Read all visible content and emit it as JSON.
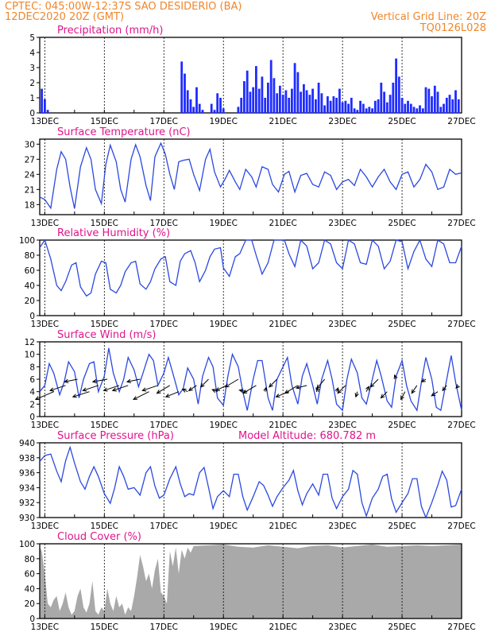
{
  "header": {
    "left_line1": "CPTEC:   045:00W-12:37S  SAO DESIDERIO (BA)",
    "left_line2": "12DEC2020 20Z (GMT)",
    "right_line1": "Vertical Grid Line: 20Z",
    "right_line2": "TQ0126L028"
  },
  "x_axis": {
    "start_day": 12.83,
    "end_day": 27,
    "tick_labels": [
      "13DEC",
      "15DEC",
      "17DEC",
      "19DEC",
      "21DEC",
      "23DEC",
      "25DEC",
      "27DEC"
    ],
    "tick_days": [
      13,
      15,
      17,
      19,
      21,
      23,
      25,
      27
    ],
    "minor_tick_days": [
      14,
      16,
      18,
      20,
      22,
      24,
      26
    ]
  },
  "colors": {
    "header": "#f0862a",
    "panel_title": "#e0148c",
    "line": "#2b48e0",
    "precip_bar": "#1f2cff",
    "cloud_fill": "#a9a9a9",
    "wind_arrow": "#000000"
  },
  "chart_data": [
    {
      "type": "bar",
      "title": "Precipitation (mm/h)",
      "ylim": [
        0,
        5
      ],
      "y_ticks": [
        0,
        1,
        2,
        3,
        4,
        5
      ],
      "x_day": [
        12.9,
        13.0,
        13.1,
        17.6,
        17.7,
        17.8,
        17.9,
        18.0,
        18.1,
        18.2,
        18.3,
        18.6,
        18.7,
        18.8,
        18.9,
        19.0,
        19.5,
        19.6,
        19.7,
        19.8,
        19.9,
        20.0,
        20.1,
        20.2,
        20.3,
        20.4,
        20.5,
        20.6,
        20.7,
        20.8,
        20.9,
        21.0,
        21.1,
        21.2,
        21.3,
        21.4,
        21.5,
        21.6,
        21.7,
        21.8,
        21.9,
        22.0,
        22.1,
        22.2,
        22.3,
        22.4,
        22.5,
        22.6,
        22.7,
        22.8,
        22.9,
        23.0,
        23.1,
        23.2,
        23.3,
        23.4,
        23.5,
        23.6,
        23.7,
        23.8,
        23.9,
        24.0,
        24.1,
        24.2,
        24.3,
        24.4,
        24.5,
        24.6,
        24.7,
        24.8,
        24.9,
        25.0,
        25.1,
        25.2,
        25.3,
        25.4,
        25.5,
        25.6,
        25.7,
        25.8,
        25.9,
        26.0,
        26.1,
        26.2,
        26.3,
        26.4,
        26.5,
        26.6,
        26.7,
        26.8,
        26.9
      ],
      "values": [
        1.6,
        0.9,
        0.2,
        3.4,
        2.6,
        1.5,
        0.9,
        0.4,
        1.7,
        0.6,
        0.2,
        0.6,
        0.2,
        1.3,
        1.0,
        0.3,
        0.4,
        1.0,
        2.1,
        2.8,
        1.4,
        1.7,
        3.1,
        1.6,
        2.4,
        1.0,
        2.0,
        3.5,
        2.3,
        1.3,
        1.8,
        1.2,
        1.5,
        1.0,
        1.6,
        3.3,
        2.7,
        1.4,
        1.9,
        1.5,
        1.2,
        1.6,
        0.9,
        2.0,
        1.3,
        0.5,
        1.1,
        0.8,
        1.1,
        1.0,
        1.6,
        0.7,
        0.8,
        0.6,
        1.0,
        0.3,
        0.2,
        0.8,
        0.6,
        0.3,
        0.4,
        0.3,
        0.8,
        0.9,
        2.0,
        1.4,
        0.7,
        1.2,
        2.0,
        3.6,
        2.4,
        1.0,
        0.6,
        0.8,
        0.6,
        0.4,
        0.3,
        0.5,
        0.3,
        1.7,
        1.6,
        1.1,
        1.8,
        1.4,
        0.4,
        0.6,
        1.0,
        1.2,
        0.9,
        1.5,
        0.9
      ]
    },
    {
      "type": "line",
      "title": "Surface Temperature (nC)",
      "ylim": [
        16,
        31
      ],
      "y_ticks": [
        18,
        21,
        24,
        27,
        30
      ],
      "x_day": [
        12.83,
        13.0,
        13.2,
        13.4,
        13.55,
        13.7,
        13.85,
        14.0,
        14.2,
        14.4,
        14.55,
        14.7,
        14.9,
        15.05,
        15.2,
        15.4,
        15.55,
        15.7,
        15.9,
        16.05,
        16.2,
        16.4,
        16.55,
        16.7,
        16.9,
        17.05,
        17.2,
        17.35,
        17.5,
        17.65,
        17.85,
        18.0,
        18.2,
        18.4,
        18.55,
        18.7,
        18.9,
        19.05,
        19.2,
        19.4,
        19.55,
        19.75,
        19.95,
        20.1,
        20.3,
        20.5,
        20.65,
        20.85,
        21.05,
        21.2,
        21.4,
        21.6,
        21.8,
        22.0,
        22.2,
        22.4,
        22.6,
        22.8,
        23.0,
        23.2,
        23.4,
        23.6,
        23.8,
        24.0,
        24.2,
        24.4,
        24.6,
        24.8,
        25.0,
        25.2,
        25.4,
        25.6,
        25.8,
        26.0,
        26.2,
        26.4,
        26.6,
        26.8,
        27.0
      ],
      "values": [
        19.5,
        19.0,
        17.3,
        25.0,
        28.5,
        27.0,
        21.5,
        17.2,
        25.5,
        29.3,
        27.0,
        21.0,
        18.2,
        26.0,
        29.8,
        26.5,
        21.0,
        18.5,
        27.0,
        29.9,
        27.5,
        21.8,
        18.8,
        27.5,
        30.2,
        28.0,
        24.0,
        21.0,
        26.5,
        26.8,
        27.0,
        24.0,
        20.8,
        27.0,
        29.0,
        24.5,
        21.5,
        23.0,
        24.8,
        22.5,
        21.0,
        25.0,
        23.5,
        21.5,
        25.5,
        25.0,
        22.0,
        20.5,
        24.0,
        24.6,
        20.5,
        23.8,
        24.2,
        22.0,
        21.5,
        24.5,
        23.8,
        21.0,
        22.5,
        23.0,
        21.8,
        25.0,
        23.5,
        21.5,
        23.5,
        25.0,
        22.5,
        21.0,
        24.0,
        24.5,
        21.5,
        23.0,
        26.0,
        24.5,
        21.0,
        21.5,
        25.0,
        24.0,
        24.3
      ]
    },
    {
      "type": "line",
      "title": "Relative Humidity (%)",
      "ylim": [
        0,
        100
      ],
      "y_ticks": [
        0,
        20,
        40,
        60,
        80,
        100
      ],
      "x_day": [
        12.83,
        13.0,
        13.2,
        13.4,
        13.55,
        13.7,
        13.9,
        14.05,
        14.2,
        14.4,
        14.55,
        14.7,
        14.9,
        15.05,
        15.2,
        15.4,
        15.55,
        15.7,
        15.9,
        16.05,
        16.2,
        16.4,
        16.55,
        16.7,
        16.9,
        17.05,
        17.2,
        17.4,
        17.55,
        17.7,
        17.9,
        18.05,
        18.2,
        18.4,
        18.55,
        18.7,
        18.9,
        19.0,
        19.2,
        19.4,
        19.55,
        19.75,
        19.95,
        20.1,
        20.3,
        20.5,
        20.7,
        20.9,
        21.05,
        21.2,
        21.4,
        21.6,
        21.8,
        22.0,
        22.2,
        22.4,
        22.6,
        22.8,
        23.0,
        23.2,
        23.4,
        23.6,
        23.8,
        24.0,
        24.2,
        24.4,
        24.6,
        24.8,
        25.0,
        25.2,
        25.4,
        25.6,
        25.8,
        26.0,
        26.2,
        26.4,
        26.6,
        26.8,
        27.0
      ],
      "values": [
        90,
        100,
        75,
        40,
        33,
        45,
        67,
        70,
        38,
        26,
        30,
        55,
        72,
        70,
        35,
        30,
        40,
        58,
        70,
        72,
        42,
        35,
        45,
        62,
        75,
        78,
        45,
        40,
        72,
        82,
        86,
        70,
        45,
        60,
        78,
        88,
        90,
        63,
        52,
        78,
        82,
        100,
        100,
        80,
        55,
        70,
        100,
        100,
        100,
        82,
        65,
        100,
        92,
        62,
        70,
        100,
        95,
        70,
        62,
        100,
        95,
        70,
        68,
        100,
        92,
        62,
        72,
        100,
        98,
        62,
        85,
        100,
        75,
        65,
        100,
        95,
        70,
        70,
        92
      ]
    },
    {
      "type": "line",
      "title": "Surface Wind (m/s)",
      "ylim": [
        0,
        12
      ],
      "y_ticks": [
        0,
        2,
        4,
        6,
        8,
        10,
        12
      ],
      "x_day": [
        12.83,
        13.0,
        13.15,
        13.3,
        13.5,
        13.65,
        13.8,
        14.0,
        14.15,
        14.3,
        14.5,
        14.65,
        14.8,
        15.0,
        15.15,
        15.3,
        15.5,
        15.65,
        15.8,
        16.0,
        16.15,
        16.3,
        16.5,
        16.65,
        16.8,
        17.0,
        17.15,
        17.3,
        17.5,
        17.65,
        17.8,
        18.0,
        18.15,
        18.3,
        18.5,
        18.65,
        18.8,
        19.0,
        19.15,
        19.3,
        19.5,
        19.65,
        19.8,
        20.0,
        20.15,
        20.3,
        20.5,
        20.65,
        20.8,
        21.0,
        21.15,
        21.3,
        21.5,
        21.65,
        21.8,
        22.0,
        22.15,
        22.3,
        22.5,
        22.65,
        22.8,
        23.0,
        23.15,
        23.3,
        23.5,
        23.65,
        23.8,
        24.0,
        24.15,
        24.3,
        24.5,
        24.65,
        24.8,
        25.0,
        25.15,
        25.3,
        25.5,
        25.65,
        25.8,
        26.0,
        26.15,
        26.3,
        26.5,
        26.65,
        26.8,
        27.0
      ],
      "values": [
        4,
        5,
        8.5,
        7,
        3.5,
        5.5,
        8.8,
        7.2,
        3,
        6,
        8.5,
        8.8,
        4,
        6.5,
        11,
        7,
        4,
        6,
        9.5,
        7.5,
        4.8,
        7,
        10,
        9,
        5,
        7,
        9.5,
        7,
        3.5,
        4.5,
        7.8,
        6,
        2,
        6.5,
        9.5,
        8,
        3,
        1.8,
        6.5,
        10,
        8,
        4,
        1,
        6,
        9,
        9,
        3,
        1,
        6,
        8,
        9.5,
        5,
        2,
        6.5,
        8.5,
        5,
        2,
        6,
        9,
        6,
        2,
        1,
        6,
        9.2,
        7,
        3,
        2,
        6,
        9,
        6.5,
        2.5,
        1.5,
        6.5,
        9,
        5,
        2.5,
        1,
        5.5,
        9.5,
        6,
        1.5,
        1,
        6,
        9.8,
        5.5,
        1
      ],
      "arrows": {
        "x_day": [
          13.3,
          13.7,
          14.1,
          14.5,
          14.8,
          15.1,
          15.5,
          15.8,
          16.2,
          16.5,
          16.8,
          17.2,
          17.5,
          17.8,
          18.1,
          18.5,
          18.8,
          19.1,
          19.5,
          19.8,
          20.1,
          20.4,
          20.8,
          21.2,
          21.5,
          21.8,
          22.2,
          22.4,
          22.8,
          23.1,
          23.5,
          23.8,
          24.2,
          24.5,
          24.8,
          25.1,
          25.5,
          25.8,
          26.2,
          26.5,
          26.9
        ],
        "y_value": [
          4,
          5,
          6,
          4,
          5,
          6,
          5,
          5,
          6,
          4,
          5,
          5,
          4,
          4,
          5,
          6,
          4,
          5,
          6,
          4,
          5,
          4,
          6,
          4,
          5,
          5,
          4,
          6,
          4,
          5,
          4,
          4,
          6,
          4,
          6,
          4,
          5,
          6,
          4,
          5,
          5
        ],
        "u": [
          -3.5,
          -3,
          -2.5,
          -3.2,
          -3,
          -2.8,
          -3,
          -3,
          -2.5,
          -3,
          -3,
          -2.5,
          -2.5,
          -1,
          -1.5,
          -1.5,
          -1,
          -2,
          -2.5,
          -1.5,
          -2.5,
          0.2,
          -1.5,
          -2.5,
          -2.5,
          -2,
          -0.5,
          -1.5,
          0.3,
          -1.5,
          -0.3,
          0.5,
          -1.5,
          -1.2,
          -0.3,
          -0.8,
          -1,
          -0.8,
          -1.2,
          -0.8,
          -0.5
        ],
        "v": [
          -1.5,
          -1,
          -0.5,
          -1,
          -1,
          -0.5,
          -1,
          -1,
          -0.5,
          -1.5,
          -1,
          -1.5,
          -1,
          0.5,
          -1,
          -1.5,
          0.4,
          -1,
          -1.5,
          0.3,
          -1.5,
          0.8,
          -1.5,
          -1,
          -1.5,
          -0.5,
          0.7,
          -1.8,
          0.7,
          -1.5,
          -1,
          1,
          -1.5,
          -1.2,
          0.8,
          -1.5,
          -1.5,
          -0.5,
          -0.8,
          -1,
          -0.5
        ]
      }
    },
    {
      "type": "line",
      "title": "Surface Pressure (hPa)",
      "subtitle": "Model Altitude: 680.782 m",
      "ylim": [
        930,
        940
      ],
      "y_ticks": [
        930,
        932,
        934,
        936,
        938,
        940
      ],
      "x_day": [
        12.83,
        13.0,
        13.2,
        13.4,
        13.55,
        13.7,
        13.85,
        14.0,
        14.2,
        14.35,
        14.5,
        14.65,
        14.8,
        15.0,
        15.2,
        15.35,
        15.5,
        15.65,
        15.8,
        16.0,
        16.2,
        16.4,
        16.55,
        16.7,
        16.85,
        17.0,
        17.2,
        17.4,
        17.55,
        17.7,
        17.85,
        18.0,
        18.2,
        18.35,
        18.5,
        18.65,
        18.8,
        19.0,
        19.2,
        19.35,
        19.5,
        19.65,
        19.8,
        20.0,
        20.2,
        20.35,
        20.5,
        20.65,
        20.8,
        21.0,
        21.2,
        21.35,
        21.5,
        21.65,
        21.8,
        22.0,
        22.2,
        22.35,
        22.5,
        22.65,
        22.8,
        23.0,
        23.2,
        23.35,
        23.5,
        23.65,
        23.8,
        24.0,
        24.2,
        24.35,
        24.5,
        24.65,
        24.8,
        25.0,
        25.2,
        25.35,
        25.5,
        25.65,
        25.8,
        26.0,
        26.2,
        26.35,
        26.5,
        26.65,
        26.8,
        27.0
      ],
      "values": [
        937.5,
        938.3,
        938.5,
        936.2,
        934.8,
        937.6,
        939.4,
        937.3,
        934.8,
        933.8,
        935.5,
        936.8,
        935.5,
        933.2,
        931.9,
        934.0,
        936.8,
        935.5,
        933.8,
        934.0,
        933.0,
        936.0,
        936.8,
        934.2,
        932.6,
        933.0,
        935.2,
        936.8,
        934.5,
        932.8,
        933.2,
        933.0,
        936.0,
        936.7,
        934.0,
        931.2,
        932.8,
        933.6,
        932.8,
        935.8,
        935.8,
        932.8,
        931.0,
        932.8,
        934.8,
        934.3,
        933.0,
        931.5,
        932.8,
        934.0,
        935.0,
        936.3,
        933.6,
        931.7,
        933.2,
        934.5,
        933.0,
        935.8,
        935.8,
        932.6,
        931.2,
        932.8,
        933.8,
        936.3,
        935.8,
        932.0,
        930.2,
        932.6,
        933.8,
        935.5,
        935.8,
        932.5,
        930.7,
        932.0,
        933.2,
        935.2,
        935.2,
        931.5,
        930.0,
        932.0,
        934.3,
        936.2,
        935.0,
        931.4,
        931.6,
        933.8
      ]
    },
    {
      "type": "area",
      "title": "Cloud Cover (%)",
      "ylim": [
        0,
        100
      ],
      "y_ticks": [
        0,
        20,
        40,
        60,
        80,
        100
      ],
      "x_day": [
        12.83,
        12.9,
        13.0,
        13.1,
        13.2,
        13.3,
        13.4,
        13.5,
        13.6,
        13.7,
        13.8,
        13.9,
        14.0,
        14.1,
        14.2,
        14.3,
        14.4,
        14.5,
        14.6,
        14.7,
        14.8,
        14.9,
        15.0,
        15.1,
        15.2,
        15.3,
        15.4,
        15.5,
        15.6,
        15.7,
        15.8,
        15.9,
        16.0,
        16.1,
        16.2,
        16.3,
        16.4,
        16.5,
        16.6,
        16.7,
        16.8,
        16.9,
        17.0,
        17.1,
        17.2,
        17.3,
        17.4,
        17.5,
        17.6,
        17.7,
        17.8,
        17.9,
        18.0,
        18.5,
        19.0,
        19.5,
        20.0,
        20.5,
        21.0,
        21.5,
        22.0,
        22.5,
        23.0,
        23.5,
        24.0,
        24.5,
        25.0,
        25.5,
        26.0,
        26.5,
        27.0
      ],
      "values": [
        96,
        90,
        60,
        20,
        15,
        25,
        30,
        10,
        20,
        35,
        15,
        5,
        10,
        30,
        40,
        15,
        8,
        20,
        50,
        10,
        5,
        15,
        10,
        40,
        20,
        10,
        30,
        15,
        20,
        5,
        15,
        10,
        30,
        55,
        85,
        70,
        50,
        60,
        40,
        65,
        80,
        35,
        30,
        20,
        90,
        70,
        95,
        60,
        92,
        80,
        95,
        88,
        97,
        98,
        99,
        96,
        95,
        98,
        96,
        94,
        97,
        98,
        95,
        97,
        99,
        96,
        97,
        98,
        97,
        98,
        99
      ]
    }
  ]
}
